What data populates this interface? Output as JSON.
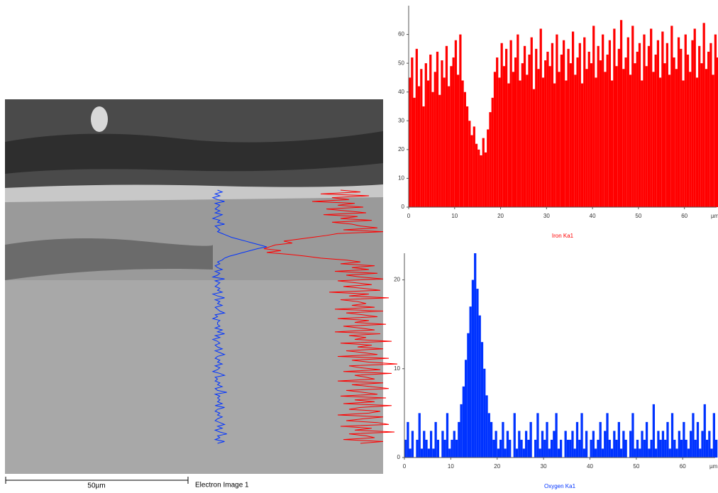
{
  "image": {
    "scale_bar": "50µm",
    "caption": "Electron Image 1"
  },
  "chart_data": [
    {
      "type": "bar",
      "xlabel": "Iron Ka1",
      "xunit": "µm",
      "color": "#ff0000",
      "xlim": [
        0,
        67
      ],
      "ylim": [
        0,
        70
      ],
      "xticks": [
        0,
        10,
        20,
        30,
        40,
        50,
        60
      ],
      "yticks": [
        0,
        10,
        20,
        30,
        40,
        50,
        60
      ],
      "x": [
        0,
        0.5,
        1,
        1.5,
        2,
        2.5,
        3,
        3.5,
        4,
        4.5,
        5,
        5.5,
        6,
        6.5,
        7,
        7.5,
        8,
        8.5,
        9,
        9.5,
        10,
        10.5,
        11,
        11.5,
        12,
        12.5,
        13,
        13.5,
        14,
        14.5,
        15,
        15.5,
        16,
        16.5,
        17,
        17.5,
        18,
        18.5,
        19,
        19.5,
        20,
        20.5,
        21,
        21.5,
        22,
        22.5,
        23,
        23.5,
        24,
        24.5,
        25,
        25.5,
        26,
        26.5,
        27,
        27.5,
        28,
        28.5,
        29,
        29.5,
        30,
        30.5,
        31,
        31.5,
        32,
        32.5,
        33,
        33.5,
        34,
        34.5,
        35,
        35.5,
        36,
        36.5,
        37,
        37.5,
        38,
        38.5,
        39,
        39.5,
        40,
        40.5,
        41,
        41.5,
        42,
        42.5,
        43,
        43.5,
        44,
        44.5,
        45,
        45.5,
        46,
        46.5,
        47,
        47.5,
        48,
        48.5,
        49,
        49.5,
        50,
        50.5,
        51,
        51.5,
        52,
        52.5,
        53,
        53.5,
        54,
        54.5,
        55,
        55.5,
        56,
        56.5,
        57,
        57.5,
        58,
        58.5,
        59,
        59.5,
        60,
        60.5,
        61,
        61.5,
        62,
        62.5,
        63,
        63.5,
        64,
        64.5,
        65,
        65.5,
        66,
        66.5,
        67
      ],
      "values": [
        45,
        52,
        38,
        55,
        42,
        48,
        35,
        50,
        44,
        53,
        40,
        47,
        54,
        39,
        51,
        45,
        56,
        42,
        49,
        52,
        58,
        46,
        60,
        44,
        40,
        35,
        30,
        25,
        28,
        22,
        20,
        18,
        24,
        19,
        27,
        33,
        38,
        47,
        52,
        45,
        57,
        49,
        55,
        43,
        58,
        47,
        52,
        60,
        44,
        50,
        56,
        46,
        53,
        59,
        41,
        55,
        48,
        62,
        45,
        51,
        54,
        49,
        57,
        43,
        60,
        47,
        53,
        58,
        44,
        55,
        50,
        61,
        46,
        52,
        57,
        43,
        59,
        48,
        54,
        50,
        63,
        45,
        56,
        51,
        60,
        47,
        53,
        58,
        44,
        62,
        49,
        55,
        65,
        48,
        52,
        59,
        46,
        63,
        50,
        54,
        57,
        44,
        60,
        49,
        56,
        62,
        47,
        53,
        58,
        45,
        61,
        50,
        57,
        46,
        63,
        52,
        48,
        59,
        55,
        44,
        60,
        53,
        47,
        58,
        62,
        45,
        56,
        50,
        64,
        48,
        54,
        57,
        46,
        60,
        52
      ]
    },
    {
      "type": "bar",
      "xlabel": "Oxygen Ka1",
      "xunit": "µm",
      "color": "#0033ff",
      "xlim": [
        0,
        67
      ],
      "ylim": [
        0,
        23
      ],
      "xticks": [
        0,
        10,
        20,
        30,
        40,
        50,
        60
      ],
      "yticks": [
        0,
        10,
        20
      ],
      "x": [
        0,
        0.5,
        1,
        1.5,
        2,
        2.5,
        3,
        3.5,
        4,
        4.5,
        5,
        5.5,
        6,
        6.5,
        7,
        7.5,
        8,
        8.5,
        9,
        9.5,
        10,
        10.5,
        11,
        11.5,
        12,
        12.5,
        13,
        13.5,
        14,
        14.5,
        15,
        15.5,
        16,
        16.5,
        17,
        17.5,
        18,
        18.5,
        19,
        19.5,
        20,
        20.5,
        21,
        21.5,
        22,
        22.5,
        23,
        23.5,
        24,
        24.5,
        25,
        25.5,
        26,
        26.5,
        27,
        27.5,
        28,
        28.5,
        29,
        29.5,
        30,
        30.5,
        31,
        31.5,
        32,
        32.5,
        33,
        33.5,
        34,
        34.5,
        35,
        35.5,
        36,
        36.5,
        37,
        37.5,
        38,
        38.5,
        39,
        39.5,
        40,
        40.5,
        41,
        41.5,
        42,
        42.5,
        43,
        43.5,
        44,
        44.5,
        45,
        45.5,
        46,
        46.5,
        47,
        47.5,
        48,
        48.5,
        49,
        49.5,
        50,
        50.5,
        51,
        51.5,
        52,
        52.5,
        53,
        53.5,
        54,
        54.5,
        55,
        55.5,
        56,
        56.5,
        57,
        57.5,
        58,
        58.5,
        59,
        59.5,
        60,
        60.5,
        61,
        61.5,
        62,
        62.5,
        63,
        63.5,
        64,
        64.5,
        65,
        65.5,
        66,
        66.5,
        67
      ],
      "values": [
        2,
        4,
        1,
        3,
        0,
        2,
        5,
        1,
        3,
        2,
        1,
        3,
        1,
        4,
        2,
        0,
        3,
        2,
        5,
        1,
        2,
        3,
        2,
        4,
        6,
        8,
        11,
        14,
        17,
        20,
        23,
        19,
        16,
        13,
        10,
        7,
        5,
        4,
        2,
        3,
        1,
        2,
        4,
        1,
        3,
        2,
        0,
        5,
        1,
        3,
        2,
        1,
        3,
        2,
        4,
        0,
        2,
        5,
        1,
        3,
        2,
        4,
        1,
        2,
        3,
        5,
        1,
        2,
        0,
        3,
        2,
        2,
        3,
        1,
        4,
        2,
        5,
        1,
        3,
        0,
        2,
        3,
        1,
        2,
        4,
        1,
        3,
        5,
        2,
        1,
        3,
        2,
        4,
        1,
        3,
        2,
        0,
        3,
        5,
        1,
        2,
        1,
        3,
        2,
        4,
        1,
        2,
        6,
        1,
        3,
        2,
        3,
        2,
        4,
        1,
        5,
        2,
        1,
        3,
        2,
        4,
        2,
        1,
        3,
        5,
        2,
        4,
        1,
        3,
        6,
        2,
        3,
        1,
        5,
        2
      ]
    }
  ]
}
